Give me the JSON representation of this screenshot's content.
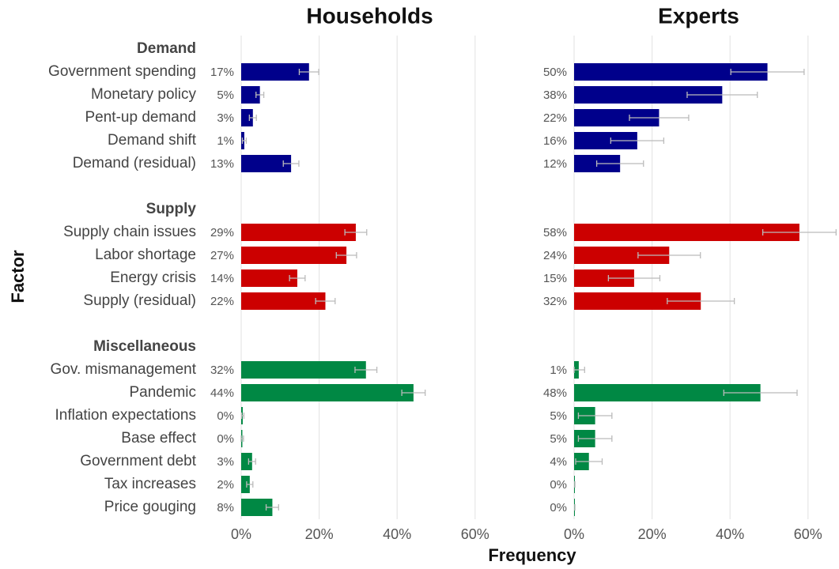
{
  "chart_data": {
    "type": "bar",
    "orientation": "horizontal",
    "xlabel": "Frequency",
    "ylabel": "Factor",
    "grid": true,
    "groups": [
      {
        "name": "Demand",
        "color": "#00008b",
        "categories": [
          "Government spending",
          "Monetary policy",
          "Pent-up demand",
          "Demand shift",
          "Demand (residual)"
        ]
      },
      {
        "name": "Supply",
        "color": "#cc0000",
        "categories": [
          "Supply chain issues",
          "Labor shortage",
          "Energy crisis",
          "Supply (residual)"
        ]
      },
      {
        "name": "Miscellaneous",
        "color": "#008844",
        "categories": [
          "Gov. mismanagement",
          "Pandemic",
          "Inflation expectations",
          "Base effect",
          "Government debt",
          "Tax increases",
          "Price gouging"
        ]
      }
    ],
    "panels": [
      {
        "title": "Households",
        "xlim": [
          0,
          70
        ],
        "xticks": [
          {
            "value": 0,
            "label": "0%"
          },
          {
            "value": 20,
            "label": "20%"
          },
          {
            "value": 40,
            "label": "40%"
          },
          {
            "value": 60,
            "label": "60%"
          }
        ],
        "values": [
          [
            17.4,
            4.8,
            3.0,
            0.8,
            12.8
          ],
          [
            29.4,
            27.0,
            14.4,
            21.6
          ],
          [
            32.0,
            44.2,
            0.4,
            0.3,
            2.8,
            2.2,
            8.0
          ]
        ],
        "value_labels": [
          [
            "17%",
            "5%",
            "3%",
            "1%",
            "13%"
          ],
          [
            "29%",
            "27%",
            "14%",
            "22%"
          ],
          [
            "32%",
            "44%",
            "0%",
            "0%",
            "3%",
            "2%",
            "8%"
          ]
        ],
        "errors": [
          [
            2.5,
            1.0,
            0.9,
            0.5,
            2.0
          ],
          [
            2.8,
            2.6,
            2.0,
            2.5
          ],
          [
            2.8,
            3.0,
            0.3,
            0.3,
            0.9,
            0.8,
            1.6
          ]
        ]
      },
      {
        "title": "Experts",
        "xlim": [
          0,
          68
        ],
        "xticks": [
          {
            "value": 0,
            "label": "0%"
          },
          {
            "value": 20,
            "label": "20%"
          },
          {
            "value": 40,
            "label": "40%"
          },
          {
            "value": 60,
            "label": "60%"
          }
        ],
        "values": [
          [
            49.6,
            38.0,
            21.8,
            16.2,
            11.8
          ],
          [
            57.8,
            24.4,
            15.4,
            32.5
          ],
          [
            1.2,
            47.8,
            5.4,
            5.4,
            3.8,
            0.2,
            0.2
          ]
        ],
        "value_labels": [
          [
            "50%",
            "38%",
            "22%",
            "16%",
            "12%"
          ],
          [
            "58%",
            "24%",
            "15%",
            "32%"
          ],
          [
            "1%",
            "48%",
            "5%",
            "5%",
            "4%",
            "0%",
            "0%"
          ]
        ],
        "errors": [
          [
            9.4,
            9.0,
            7.6,
            6.8,
            6.0
          ],
          [
            9.4,
            8.0,
            6.6,
            8.6
          ],
          [
            1.5,
            9.4,
            4.3,
            4.3,
            3.4,
            0,
            0
          ]
        ]
      }
    ]
  }
}
